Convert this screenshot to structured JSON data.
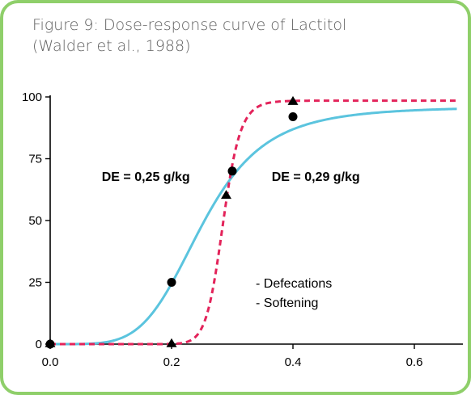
{
  "title_line1": "Figure 9: Dose-response curve of Lactitol",
  "title_line2": "(Walder et al., 1988)",
  "colors": {
    "frame": "#8fcf6a",
    "defecations": "#5bc4de",
    "softening": "#e3235a",
    "markers": "#000000"
  },
  "chart_data": {
    "type": "line",
    "title": "Figure 9: Dose-response curve of Lactitol (Walder et al., 1988)",
    "xlim": [
      0,
      0.68
    ],
    "ylim": [
      0,
      100
    ],
    "x_ticks": [
      "0.0",
      "0.2",
      "0.4",
      "0.6"
    ],
    "x_tick_values": [
      0,
      0.2,
      0.4,
      0.6
    ],
    "y_ticks": [
      "0",
      "25",
      "50",
      "75",
      "100"
    ],
    "y_tick_values": [
      0,
      25,
      50,
      75,
      100
    ],
    "grid": false,
    "series": [
      {
        "name": "Defecations",
        "style": "solid",
        "color": "#5bc4de",
        "marker": "circle",
        "points": [
          {
            "x": 0.0,
            "y": 0
          },
          {
            "x": 0.2,
            "y": 25
          },
          {
            "x": 0.3,
            "y": 70
          },
          {
            "x": 0.4,
            "y": 92
          }
        ],
        "curve_fit": {
          "model": "log-logistic",
          "ed50": 0.25,
          "hill": 4.8,
          "top": 96
        }
      },
      {
        "name": "Softening",
        "style": "dashed",
        "color": "#e3235a",
        "marker": "triangle",
        "points": [
          {
            "x": 0.0,
            "y": 0
          },
          {
            "x": 0.2,
            "y": 0
          },
          {
            "x": 0.29,
            "y": 60
          },
          {
            "x": 0.4,
            "y": 98
          }
        ],
        "curve_fit": {
          "model": "log-logistic",
          "ed50": 0.285,
          "hill": 20,
          "top": 98.5
        }
      }
    ],
    "annotations": [
      {
        "text": "DE = 0,25 g/kg",
        "x": 0.085,
        "y": 68
      },
      {
        "text": "DE = 0,29 g/kg",
        "x": 0.365,
        "y": 68
      }
    ],
    "legend": {
      "position": "center-right",
      "items": [
        "- Defecations",
        "- Softening"
      ]
    }
  }
}
